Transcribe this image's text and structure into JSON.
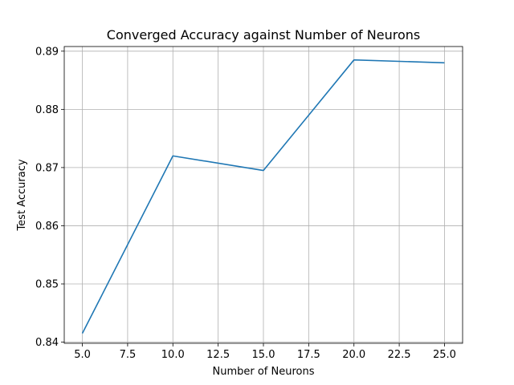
{
  "chart_data": {
    "type": "line",
    "title": "Converged Accuracy against Number of Neurons",
    "xlabel": "Number of Neurons",
    "ylabel": "Test Accuracy",
    "xlim": [
      4.0,
      26.0
    ],
    "ylim": [
      0.8398,
      0.8908
    ],
    "x_ticks": [
      5.0,
      7.5,
      10.0,
      12.5,
      15.0,
      17.5,
      20.0,
      22.5,
      25.0
    ],
    "x_tick_labels": [
      "5.0",
      "7.5",
      "10.0",
      "12.5",
      "15.0",
      "17.5",
      "20.0",
      "22.5",
      "25.0"
    ],
    "y_ticks": [
      0.84,
      0.85,
      0.86,
      0.87,
      0.88,
      0.89
    ],
    "y_tick_labels": [
      "0.84",
      "0.85",
      "0.86",
      "0.87",
      "0.88",
      "0.89"
    ],
    "grid": true,
    "series": [
      {
        "color": "#1f77b4",
        "x": [
          5,
          10,
          15,
          20,
          25
        ],
        "y": [
          0.8415,
          0.872,
          0.8695,
          0.8885,
          0.888
        ]
      }
    ]
  }
}
